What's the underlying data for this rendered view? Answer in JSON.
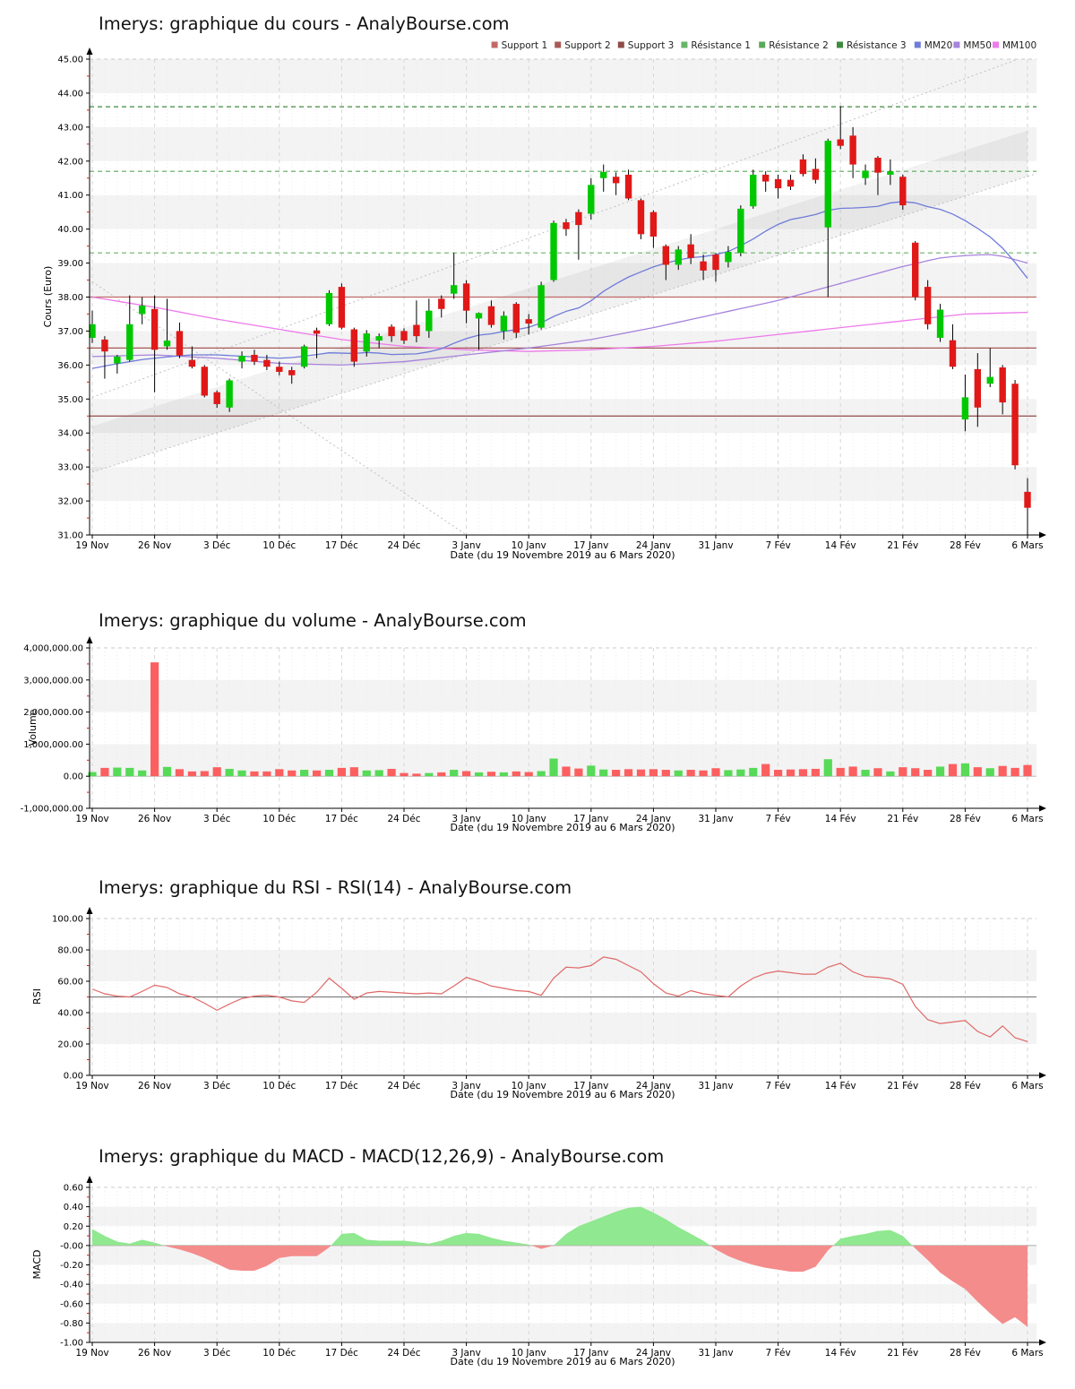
{
  "x_axis": {
    "label": "Date (du 19 Novembre 2019 au 6 Mars 2020)",
    "tick_labels": [
      "19 Nov",
      "26 Nov",
      "3 Déc",
      "10 Déc",
      "17 Déc",
      "24 Déc",
      "3 Janv",
      "10 Janv",
      "17 Janv",
      "24 Janv",
      "31 Janv",
      "7 Fév",
      "14 Fév",
      "21 Fév",
      "28 Fév",
      "6 Mars"
    ],
    "tick_every": 5,
    "n_points": 76
  },
  "chart_data": [
    {
      "id": "cours",
      "type": "candlestick",
      "title": "Imerys: graphique du cours - AnalyBourse.com",
      "ylabel": "Cours (Euro)",
      "ylim": [
        31,
        45
      ],
      "ytick_step": 1,
      "band_offset": 0,
      "up_color": "#00c800",
      "down_color": "#e01818",
      "wick_color": "#000000",
      "legend": [
        {
          "label": "Support 1",
          "color": "#c06a66"
        },
        {
          "label": "Support 2",
          "color": "#a85a56"
        },
        {
          "label": "Support 3",
          "color": "#8f4c48"
        },
        {
          "label": "Résistance 1",
          "color": "#6ab46a"
        },
        {
          "label": "Résistance 2",
          "color": "#5aa85a"
        },
        {
          "label": "Résistance 3",
          "color": "#3d8b3d"
        },
        {
          "label": "MM20",
          "color": "#6f7bd9"
        },
        {
          "label": "MM50",
          "color": "#a683dc"
        },
        {
          "label": "MM100",
          "color": "#ee7bea"
        }
      ],
      "support_levels": [
        38.0,
        36.5,
        34.5
      ],
      "resistance_levels": [
        39.3,
        41.7,
        43.6
      ],
      "trend_lines": [
        {
          "name": "channel-upper",
          "p1": [
            0,
            35.05
          ],
          "p2": [
            75,
            45.1
          ]
        },
        {
          "name": "channel-lower",
          "p1": [
            0,
            32.85
          ],
          "p2": [
            75,
            41.55
          ]
        },
        {
          "name": "downtrend",
          "p1": [
            0,
            38.45
          ],
          "p2": [
            30,
            31.0
          ]
        }
      ],
      "channel_stripe_width": 1.35,
      "ohlc": [
        [
          36.8,
          37.6,
          36.65,
          37.2
        ],
        [
          36.75,
          36.85,
          35.6,
          36.4
        ],
        [
          36.05,
          36.3,
          35.75,
          36.25
        ],
        [
          36.15,
          38.05,
          36.1,
          37.2
        ],
        [
          37.5,
          38.0,
          37.2,
          37.75
        ],
        [
          37.65,
          38.05,
          35.2,
          36.45
        ],
        [
          36.55,
          37.95,
          36.45,
          36.72
        ],
        [
          37.0,
          37.25,
          36.2,
          36.28
        ],
        [
          36.15,
          36.55,
          35.9,
          35.95
        ],
        [
          35.95,
          36.0,
          35.05,
          35.1
        ],
        [
          35.2,
          35.25,
          34.74,
          34.85
        ],
        [
          34.75,
          35.6,
          34.62,
          35.55
        ],
        [
          36.1,
          36.4,
          35.9,
          36.27
        ],
        [
          36.3,
          36.45,
          36.0,
          36.1
        ],
        [
          36.15,
          36.3,
          35.85,
          35.95
        ],
        [
          35.95,
          36.1,
          35.7,
          35.8
        ],
        [
          35.85,
          35.95,
          35.45,
          35.7
        ],
        [
          35.95,
          36.6,
          35.9,
          36.55
        ],
        [
          37.02,
          37.1,
          36.2,
          36.92
        ],
        [
          37.2,
          38.2,
          37.15,
          38.12
        ],
        [
          38.3,
          38.4,
          37.05,
          37.1
        ],
        [
          37.05,
          37.1,
          35.95,
          36.1
        ],
        [
          36.4,
          37.03,
          36.25,
          36.93
        ],
        [
          36.72,
          36.93,
          36.5,
          36.85
        ],
        [
          37.13,
          37.2,
          36.68,
          36.85
        ],
        [
          37.0,
          37.08,
          36.62,
          36.72
        ],
        [
          37.18,
          37.9,
          36.67,
          36.85
        ],
        [
          37.0,
          37.95,
          36.8,
          37.6
        ],
        [
          37.95,
          38.05,
          37.4,
          37.65
        ],
        [
          38.1,
          39.3,
          37.95,
          38.35
        ],
        [
          38.4,
          38.5,
          37.23,
          37.6
        ],
        [
          37.37,
          37.55,
          36.45,
          37.53
        ],
        [
          37.73,
          37.9,
          37.1,
          37.18
        ],
        [
          37.0,
          37.58,
          36.75,
          37.45
        ],
        [
          37.8,
          37.85,
          36.8,
          36.95
        ],
        [
          37.35,
          37.5,
          36.9,
          37.22
        ],
        [
          37.1,
          38.45,
          37.05,
          38.35
        ],
        [
          38.5,
          40.25,
          38.45,
          40.18
        ],
        [
          40.2,
          40.3,
          39.8,
          40.0
        ],
        [
          40.5,
          40.58,
          39.1,
          40.12
        ],
        [
          40.45,
          41.5,
          40.28,
          41.3
        ],
        [
          41.5,
          41.9,
          41.1,
          41.68
        ],
        [
          41.54,
          41.67,
          41.0,
          41.35
        ],
        [
          41.6,
          41.75,
          40.85,
          40.9
        ],
        [
          40.85,
          40.9,
          39.7,
          39.85
        ],
        [
          40.5,
          40.55,
          39.45,
          39.78
        ],
        [
          39.5,
          39.55,
          38.5,
          38.95
        ],
        [
          38.95,
          39.5,
          38.8,
          39.4
        ],
        [
          39.55,
          39.85,
          38.97,
          39.15
        ],
        [
          39.05,
          39.25,
          38.5,
          38.78
        ],
        [
          39.25,
          39.3,
          38.45,
          38.8
        ],
        [
          39.03,
          39.5,
          38.87,
          39.33
        ],
        [
          39.3,
          40.7,
          39.2,
          40.6
        ],
        [
          40.67,
          41.75,
          40.6,
          41.6
        ],
        [
          41.6,
          41.7,
          41.1,
          41.4
        ],
        [
          41.47,
          41.6,
          40.9,
          41.2
        ],
        [
          41.45,
          41.6,
          41.15,
          41.25
        ],
        [
          42.05,
          42.2,
          41.55,
          41.62
        ],
        [
          41.77,
          42.08,
          41.34,
          41.45
        ],
        [
          40.05,
          42.66,
          38.0,
          42.6
        ],
        [
          42.64,
          43.62,
          42.35,
          42.45
        ],
        [
          42.75,
          43.0,
          41.5,
          41.9
        ],
        [
          41.5,
          41.9,
          41.3,
          41.72
        ],
        [
          42.1,
          42.15,
          41.0,
          41.66
        ],
        [
          41.6,
          42.05,
          41.3,
          41.7
        ],
        [
          41.54,
          41.6,
          40.57,
          40.7
        ],
        [
          39.6,
          39.65,
          37.9,
          38.0
        ],
        [
          38.3,
          38.5,
          37.05,
          37.2
        ],
        [
          36.8,
          37.8,
          36.68,
          37.63
        ],
        [
          36.73,
          37.2,
          35.88,
          35.95
        ],
        [
          34.4,
          35.72,
          34.05,
          35.05
        ],
        [
          35.88,
          36.35,
          34.18,
          34.75
        ],
        [
          35.45,
          36.5,
          35.35,
          35.65
        ],
        [
          35.93,
          36.0,
          34.55,
          34.9
        ],
        [
          35.45,
          35.56,
          32.93,
          33.05
        ],
        [
          32.27,
          32.67,
          31.0,
          31.8
        ]
      ],
      "mm20": [
        35.9,
        35.97,
        36.04,
        36.1,
        36.16,
        36.2,
        36.24,
        36.27,
        36.3,
        36.3,
        36.3,
        36.28,
        36.26,
        36.24,
        36.22,
        36.2,
        36.22,
        36.26,
        36.31,
        36.36,
        36.35,
        36.34,
        36.37,
        36.35,
        36.31,
        36.32,
        36.33,
        36.39,
        36.48,
        36.64,
        36.78,
        36.88,
        36.92,
        36.99,
        37.04,
        37.11,
        37.24,
        37.43,
        37.58,
        37.68,
        37.89,
        38.17,
        38.39,
        38.59,
        38.74,
        38.89,
        39.0,
        39.09,
        39.16,
        39.19,
        39.25,
        39.34,
        39.51,
        39.71,
        39.94,
        40.14,
        40.28,
        40.35,
        40.43,
        40.55,
        40.61,
        40.62,
        40.64,
        40.67,
        40.77,
        40.81,
        40.77,
        40.66,
        40.58,
        40.44,
        40.25,
        40.02,
        39.77,
        39.44,
        39.02,
        38.55
      ],
      "mm50": [
        36.25,
        36.26,
        36.27,
        36.28,
        36.29,
        36.3,
        36.28,
        36.26,
        36.24,
        36.22,
        36.2,
        36.17,
        36.14,
        36.11,
        36.08,
        36.05,
        36.04,
        36.03,
        36.02,
        36.01,
        36.0,
        36.02,
        36.04,
        36.06,
        36.08,
        36.1,
        36.14,
        36.18,
        36.22,
        36.26,
        36.3,
        36.34,
        36.38,
        36.42,
        36.46,
        36.5,
        36.55,
        36.6,
        36.65,
        36.7,
        36.75,
        36.82,
        36.89,
        36.96,
        37.03,
        37.1,
        37.18,
        37.26,
        37.34,
        37.42,
        37.5,
        37.58,
        37.66,
        37.74,
        37.82,
        37.9,
        38.0,
        38.1,
        38.2,
        38.3,
        38.4,
        38.5,
        38.6,
        38.7,
        38.8,
        38.9,
        38.98,
        39.07,
        39.15,
        39.19,
        39.22,
        39.24,
        39.25,
        39.2,
        39.1,
        39.0
      ],
      "mm100": [
        38.0,
        37.94,
        37.88,
        37.82,
        37.76,
        37.7,
        37.63,
        37.56,
        37.49,
        37.42,
        37.35,
        37.29,
        37.23,
        37.17,
        37.11,
        37.05,
        36.99,
        36.93,
        36.87,
        36.81,
        36.75,
        36.71,
        36.67,
        36.63,
        36.59,
        36.55,
        36.53,
        36.51,
        36.49,
        36.47,
        36.45,
        36.44,
        36.43,
        36.42,
        36.41,
        36.4,
        36.41,
        36.42,
        36.43,
        36.44,
        36.45,
        36.47,
        36.49,
        36.51,
        36.53,
        36.55,
        36.58,
        36.61,
        36.64,
        36.67,
        36.7,
        36.74,
        36.78,
        36.82,
        36.86,
        36.9,
        36.94,
        36.98,
        37.02,
        37.06,
        37.1,
        37.14,
        37.18,
        37.22,
        37.26,
        37.3,
        37.34,
        37.38,
        37.42,
        37.46,
        37.5,
        37.51,
        37.52,
        37.53,
        37.54,
        37.55
      ]
    },
    {
      "id": "volume",
      "type": "bar",
      "title": "Imerys: graphique du volume - AnalyBourse.com",
      "ylabel": "Volume",
      "ylim": [
        -1000000,
        4000000
      ],
      "ytick_step": 1000000,
      "band_offset": 1,
      "up_color": "#57da57",
      "down_color": "#fc5f5f",
      "values": [
        130000,
        260000,
        270000,
        260000,
        180000,
        3550000,
        290000,
        220000,
        150000,
        160000,
        280000,
        230000,
        180000,
        150000,
        150000,
        220000,
        180000,
        200000,
        180000,
        200000,
        260000,
        280000,
        180000,
        190000,
        230000,
        100000,
        80000,
        100000,
        120000,
        200000,
        160000,
        120000,
        140000,
        120000,
        150000,
        130000,
        160000,
        550000,
        300000,
        240000,
        330000,
        210000,
        200000,
        220000,
        210000,
        220000,
        200000,
        180000,
        200000,
        180000,
        250000,
        190000,
        210000,
        260000,
        380000,
        200000,
        210000,
        220000,
        230000,
        530000,
        260000,
        300000,
        200000,
        250000,
        150000,
        280000,
        250000,
        200000,
        300000,
        380000,
        400000,
        280000,
        250000,
        320000,
        260000,
        350000
      ]
    },
    {
      "id": "rsi",
      "type": "line",
      "title": "Imerys: graphique du RSI - RSI(14) - AnalyBourse.com",
      "ylabel": "RSI",
      "ylim": [
        0,
        100
      ],
      "ytick_step": 20,
      "band_offset": 1,
      "midline": 50,
      "line_color": "#e06868",
      "values": [
        55,
        52,
        50.5,
        50,
        53.5,
        57.5,
        56,
        52,
        50,
        46,
        41.5,
        45.5,
        49,
        50.5,
        51,
        50,
        47.5,
        46.5,
        53,
        62,
        55.5,
        48.5,
        52.5,
        53.5,
        53,
        52.5,
        52,
        52.5,
        52,
        57,
        62.5,
        60,
        57,
        55.5,
        54,
        53.5,
        51,
        62,
        69,
        68.5,
        70,
        75.5,
        74,
        70,
        66,
        58.5,
        52.5,
        50.5,
        54,
        52,
        51,
        50,
        57,
        62,
        65,
        66.5,
        65.5,
        64.5,
        64.5,
        69,
        71.5,
        66,
        63,
        62.5,
        61.5,
        58,
        44,
        35.5,
        33,
        34,
        35,
        28,
        24.5,
        31.5,
        24,
        21.5
      ]
    },
    {
      "id": "macd",
      "type": "area",
      "title": "Imerys: graphique du MACD - MACD(12,26,9) - AnalyBourse.com",
      "ylabel": "MACD",
      "ylim": [
        -1.0,
        0.6
      ],
      "ytick_step": 0.2,
      "band_offset": 1,
      "pos_color": "#90e890",
      "neg_color": "#f48c8c",
      "values": [
        0.17,
        0.1,
        0.04,
        0.02,
        0.06,
        0.03,
        -0.01,
        -0.04,
        -0.08,
        -0.13,
        -0.19,
        -0.25,
        -0.26,
        -0.26,
        -0.21,
        -0.13,
        -0.11,
        -0.11,
        -0.11,
        -0.02,
        0.12,
        0.13,
        0.06,
        0.05,
        0.05,
        0.05,
        0.035,
        0.02,
        0.05,
        0.1,
        0.13,
        0.12,
        0.08,
        0.05,
        0.03,
        0.01,
        -0.035,
        0.0,
        0.12,
        0.2,
        0.25,
        0.3,
        0.35,
        0.39,
        0.4,
        0.34,
        0.27,
        0.19,
        0.12,
        0.05,
        -0.04,
        -0.11,
        -0.16,
        -0.2,
        -0.23,
        -0.25,
        -0.27,
        -0.27,
        -0.22,
        -0.05,
        0.07,
        0.1,
        0.12,
        0.15,
        0.16,
        0.1,
        -0.03,
        -0.15,
        -0.28,
        -0.37,
        -0.45,
        -0.58,
        -0.7,
        -0.81,
        -0.74,
        -0.84
      ]
    }
  ]
}
